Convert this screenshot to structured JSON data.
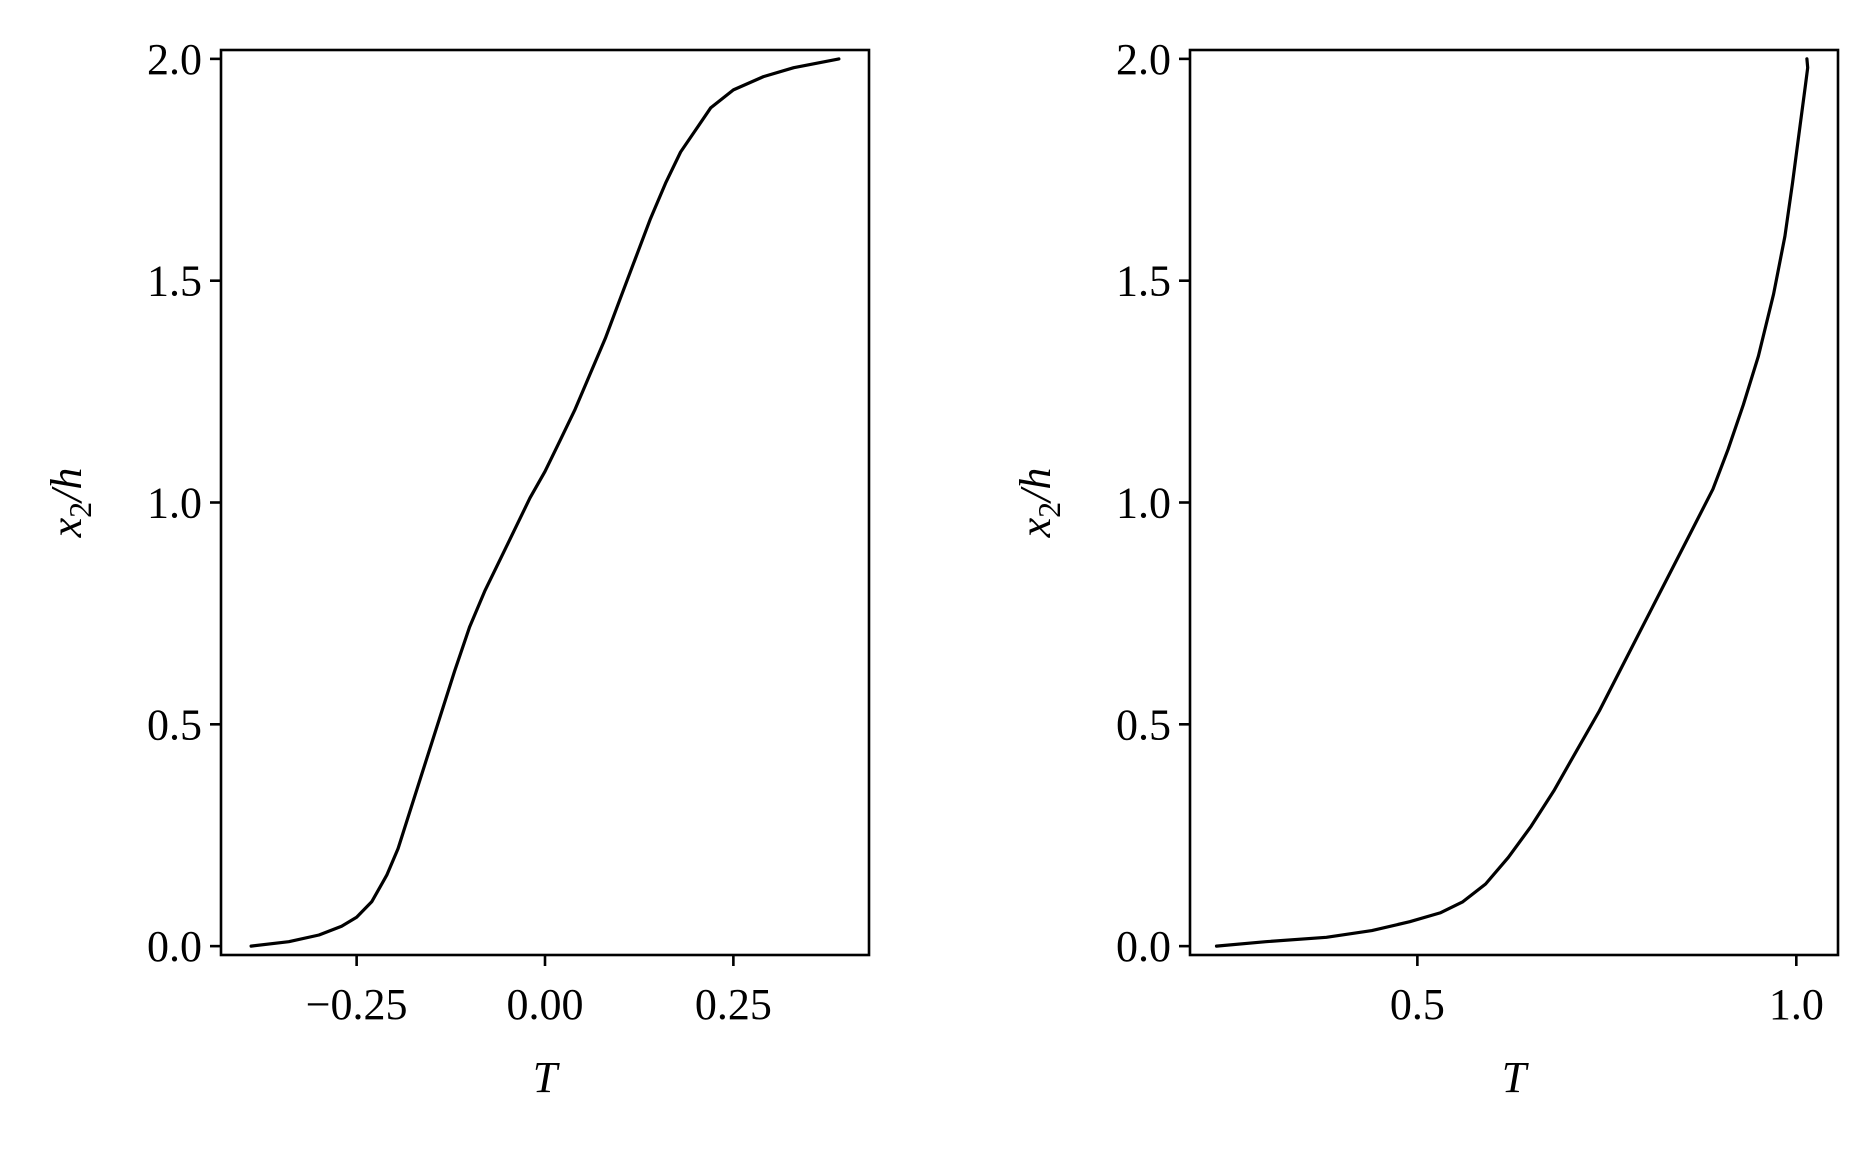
{
  "chart_data": [
    {
      "type": "line",
      "xlabel": "T",
      "ylabel_main": "x",
      "ylabel_sub": "2",
      "ylabel_tail": "/h",
      "xlim": [
        -0.43,
        0.43
      ],
      "ylim": [
        -0.02,
        2.02
      ],
      "xticks": [
        -0.25,
        0.0,
        0.25
      ],
      "xtick_labels": [
        "−0.25",
        "0.00",
        "0.25"
      ],
      "yticks": [
        0.0,
        0.5,
        1.0,
        1.5,
        2.0
      ],
      "ytick_labels": [
        "0.0",
        "0.5",
        "1.0",
        "1.5",
        "2.0"
      ],
      "series": [
        {
          "color": "#000000",
          "x": [
            -0.39,
            -0.34,
            -0.3,
            -0.27,
            -0.25,
            -0.23,
            -0.21,
            -0.195,
            -0.18,
            -0.165,
            -0.15,
            -0.135,
            -0.12,
            -0.1,
            -0.08,
            -0.06,
            -0.04,
            -0.02,
            0.0,
            0.02,
            0.04,
            0.06,
            0.08,
            0.1,
            0.12,
            0.14,
            0.16,
            0.18,
            0.2,
            0.22,
            0.25,
            0.29,
            0.33,
            0.39
          ],
          "y": [
            0.0,
            0.01,
            0.025,
            0.045,
            0.065,
            0.1,
            0.16,
            0.22,
            0.3,
            0.38,
            0.46,
            0.54,
            0.62,
            0.72,
            0.8,
            0.87,
            0.94,
            1.01,
            1.07,
            1.14,
            1.21,
            1.29,
            1.37,
            1.46,
            1.55,
            1.64,
            1.72,
            1.79,
            1.84,
            1.89,
            1.93,
            1.96,
            1.98,
            2.0
          ]
        }
      ]
    },
    {
      "type": "line",
      "xlabel": "T",
      "ylabel_main": "x",
      "ylabel_sub": "2",
      "ylabel_tail": "/h",
      "xlim": [
        0.2,
        1.055
      ],
      "ylim": [
        -0.02,
        2.02
      ],
      "xticks": [
        0.5,
        1.0
      ],
      "xtick_labels": [
        "0.5",
        "1.0"
      ],
      "yticks": [
        0.0,
        0.5,
        1.0,
        1.5,
        2.0
      ],
      "ytick_labels": [
        "0.0",
        "0.5",
        "1.0",
        "1.5",
        "2.0"
      ],
      "series": [
        {
          "color": "#000000",
          "x": [
            0.235,
            0.3,
            0.38,
            0.44,
            0.49,
            0.53,
            0.56,
            0.59,
            0.62,
            0.65,
            0.68,
            0.71,
            0.74,
            0.77,
            0.8,
            0.83,
            0.86,
            0.89,
            0.91,
            0.93,
            0.95,
            0.97,
            0.985,
            0.995,
            1.005,
            1.012,
            1.015,
            1.014
          ],
          "y": [
            0.0,
            0.01,
            0.02,
            0.035,
            0.055,
            0.075,
            0.1,
            0.14,
            0.2,
            0.27,
            0.35,
            0.44,
            0.53,
            0.63,
            0.73,
            0.83,
            0.93,
            1.03,
            1.12,
            1.22,
            1.33,
            1.47,
            1.6,
            1.72,
            1.85,
            1.94,
            1.98,
            2.0
          ]
        }
      ]
    }
  ]
}
